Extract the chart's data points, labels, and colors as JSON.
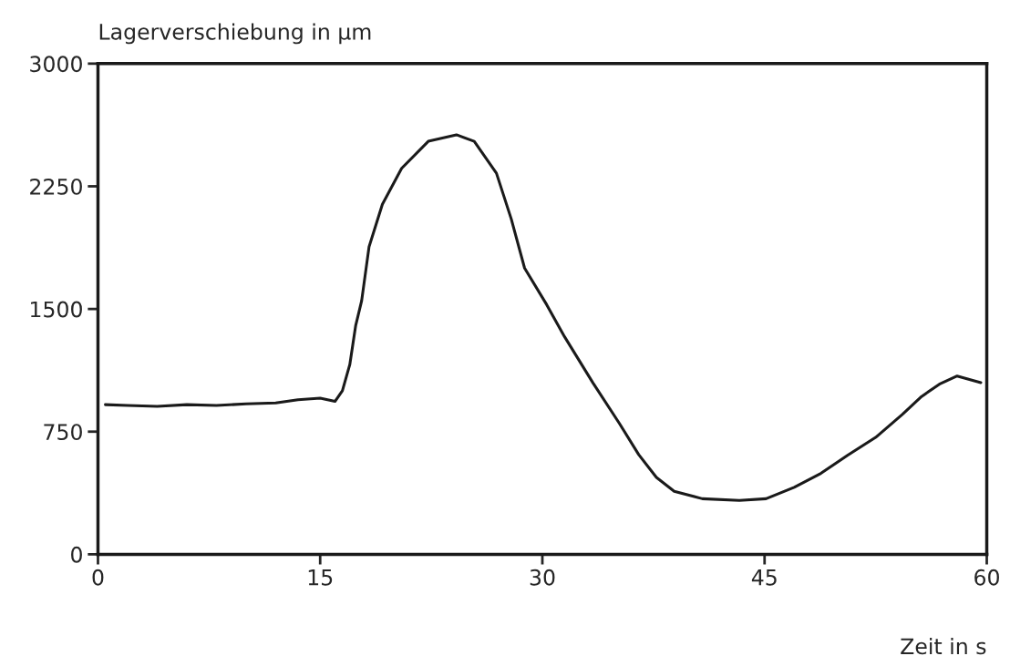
{
  "chart_data": {
    "type": "line",
    "xlabel": "Zeit in s",
    "ylabel": "Lagerverschiebung in µm",
    "x": [
      0.5,
      2,
      4,
      6,
      8,
      10,
      12,
      13.5,
      15,
      16,
      16.5,
      17,
      17.4,
      17.8,
      18.3,
      19.2,
      20.5,
      22.3,
      24.2,
      25.4,
      26.9,
      27.9,
      28.8,
      30.3,
      31.5,
      33.4,
      35.2,
      36.5,
      37.7,
      38.9,
      40.8,
      43.3,
      45.1,
      47,
      48.8,
      50.6,
      52.5,
      54.3,
      55.6,
      56.8,
      58,
      59.6
    ],
    "series": [
      {
        "color": "#1a1a1a",
        "values": [
          915,
          910,
          905,
          915,
          910,
          920,
          925,
          945,
          955,
          935,
          1000,
          1160,
          1400,
          1550,
          1880,
          2140,
          2360,
          2525,
          2565,
          2525,
          2330,
          2050,
          1750,
          1525,
          1330,
          1050,
          800,
          610,
          470,
          385,
          340,
          330,
          340,
          410,
          495,
          605,
          715,
          855,
          965,
          1040,
          1090,
          1050
        ]
      }
    ],
    "xlim": [
      0,
      60
    ],
    "ylim": [
      0,
      3000
    ],
    "xticks": [
      0,
      15,
      30,
      45,
      60
    ],
    "yticks": [
      0,
      750,
      1500,
      2250,
      3000
    ],
    "grid": false,
    "legend": false,
    "marker": "none",
    "line_style": "solid"
  }
}
